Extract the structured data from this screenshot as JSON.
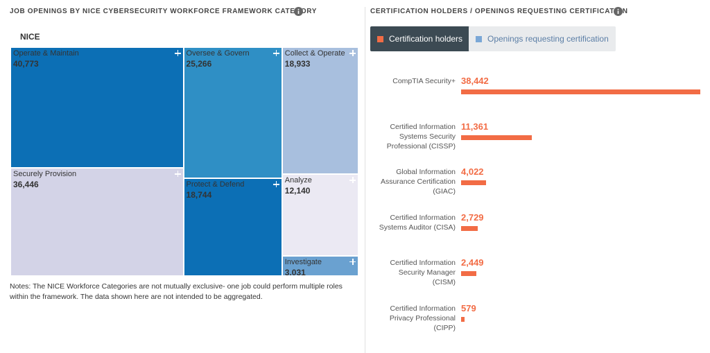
{
  "chart_data": [
    {
      "type": "treemap",
      "title": "JOB OPENINGS BY NICE CYBERSECURITY WORKFORCE FRAMEWORK CATEGORY",
      "root": "NICE",
      "categories": [
        "Operate & Maintain",
        "Securely Provision",
        "Oversee & Govern",
        "Protect & Defend",
        "Collect & Operate",
        "Analyze",
        "Investigate"
      ],
      "values": [
        40773,
        36446,
        25266,
        18744,
        18933,
        12140,
        3031
      ],
      "value_labels": [
        "40,773",
        "36,446",
        "25,266",
        "18,744",
        "18,933",
        "12,140",
        "3,031"
      ],
      "colors": [
        "#0c6fb5",
        "#d3d3e7",
        "#2f8fc5",
        "#0c6fb5",
        "#a8bfde",
        "#ebe9f3",
        "#6aa1d0"
      ],
      "notes": "Notes: The NICE Workforce Categories are not mutually exclusive- one job could perform multiple roles within the framework. The data shown here are not intended to be aggregated."
    },
    {
      "type": "bar",
      "title": "CERTIFICATION HOLDERS / OPENINGS REQUESTING CERTIFICATION",
      "categories": [
        "CompTIA Security+",
        "Certified Information Systems Security Professional (CISSP)",
        "Global Information Assurance Certification (GIAC)",
        "Certified Information Systems Auditor (CISA)",
        "Certified Information Security Manager (CISM)",
        "Certified Information Privacy Professional (CIPP)"
      ],
      "series": [
        {
          "name": "Certification holders",
          "color": "#f26c45",
          "values": [
            38442,
            11361,
            4022,
            2729,
            2449,
            579
          ],
          "value_labels": [
            "38,442",
            "11,361",
            "4,022",
            "2,729",
            "2,449",
            "579"
          ]
        }
      ],
      "inactive_legend": {
        "name": "Openings requesting certification",
        "color": "#7aa7d6"
      }
    }
  ]
}
